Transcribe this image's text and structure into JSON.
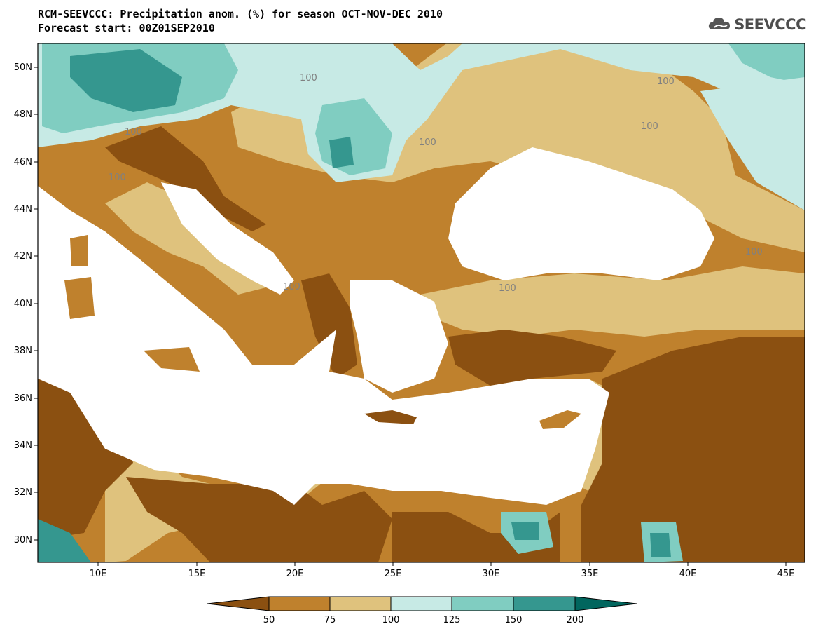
{
  "header": {
    "title_line1": "RCM-SEEVCCC: Precipitation anom. (%) for season OCT-NOV-DEC 2010",
    "title_line2": "Forecast start: 00Z01SEP2010",
    "logo_text": "SEEVCCC",
    "logo_icon": "cloud-icon"
  },
  "map": {
    "lon_range": [
      7,
      46
    ],
    "lat_range": [
      29,
      51
    ],
    "lat_ticks": [
      "50N",
      "48N",
      "46N",
      "44N",
      "42N",
      "40N",
      "38N",
      "36N",
      "34N",
      "32N",
      "30N"
    ],
    "lon_ticks": [
      "10E",
      "15E",
      "20E",
      "25E",
      "30E",
      "35E",
      "40E",
      "45E"
    ],
    "contour_labels": [
      "100",
      "100",
      "100",
      "100",
      "100",
      "100",
      "100",
      "100",
      "100"
    ],
    "colors": {
      "lt50": "#8b5011",
      "50_75": "#bf812d",
      "75_100": "#dfc27d",
      "100_125": "#c7eae5",
      "125_150": "#80cdc1",
      "150_200": "#35978f",
      "gt200": "#01665e",
      "sea": "#ffffff"
    }
  },
  "colorbar": {
    "labels": [
      "50",
      "75",
      "100",
      "125",
      "150",
      "200"
    ],
    "colors": [
      "#8b5011",
      "#bf812d",
      "#dfc27d",
      "#c7eae5",
      "#80cdc1",
      "#35978f",
      "#01665e"
    ]
  }
}
